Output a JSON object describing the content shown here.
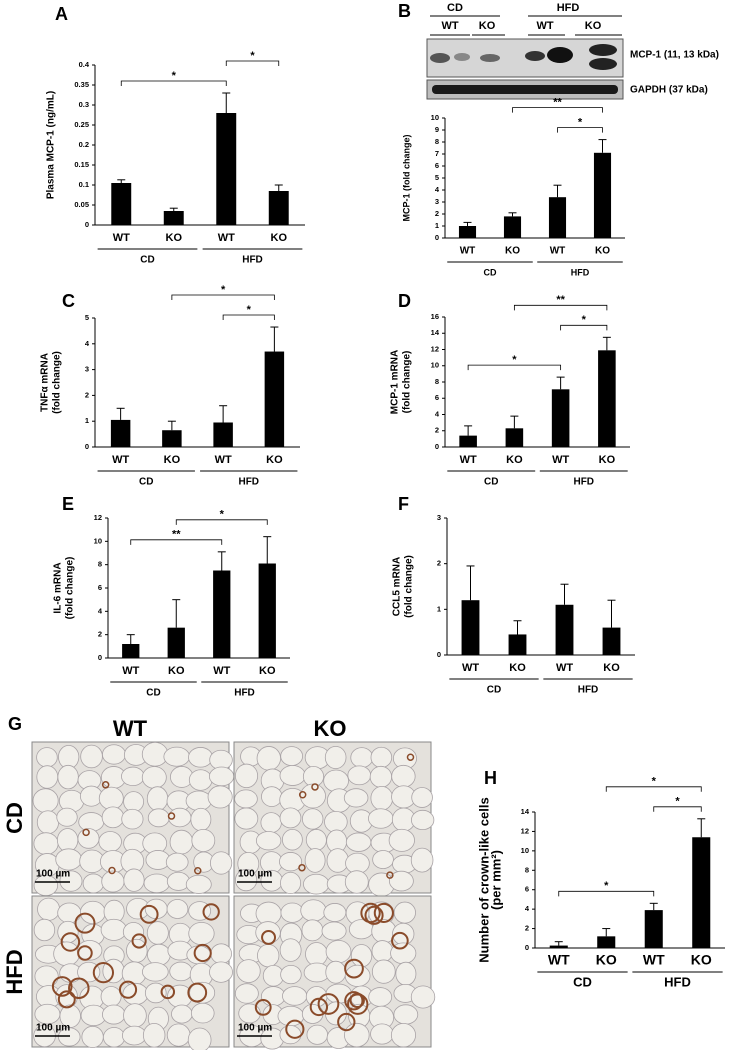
{
  "chart_data": [
    {
      "panel": "A",
      "type": "bar",
      "y_label": [
        "Plasma MCP-1 (ng/mL)"
      ],
      "categories": [
        "WT",
        "KO",
        "WT",
        "KO"
      ],
      "groups": [
        "CD",
        "HFD"
      ],
      "values": [
        0.105,
        0.035,
        0.28,
        0.085
      ],
      "errors": [
        0.008,
        0.007,
        0.05,
        0.015
      ],
      "color": "#000000",
      "ylim": [
        0,
        0.4
      ],
      "yticks": [
        0,
        0.05,
        0.1,
        0.15,
        0.2,
        0.25,
        0.3,
        0.35,
        0.4
      ],
      "significance": [
        {
          "label": "*",
          "bars": [
            0,
            2
          ]
        },
        {
          "label": "*",
          "bars": [
            2,
            3
          ]
        }
      ]
    },
    {
      "panel": "B",
      "type": "bar",
      "y_label": [
        "MCP-1 (fold change)"
      ],
      "categories": [
        "WT",
        "KO",
        "WT",
        "KO"
      ],
      "groups": [
        "CD",
        "HFD"
      ],
      "values": [
        1.0,
        1.8,
        3.4,
        7.1
      ],
      "errors": [
        0.3,
        0.3,
        1.0,
        1.1
      ],
      "color": "#000000",
      "ylim": [
        0,
        10
      ],
      "yticks": [
        0,
        1,
        2,
        3,
        4,
        5,
        6,
        7,
        8,
        9,
        10
      ],
      "significance": [
        {
          "label": "*",
          "bars": [
            2,
            3
          ]
        },
        {
          "label": "**",
          "bars": [
            1,
            3
          ]
        }
      ]
    },
    {
      "panel": "C",
      "type": "bar",
      "y_label": [
        "TNFα mRNA",
        "(fold change)"
      ],
      "categories": [
        "WT",
        "KO",
        "WT",
        "KO"
      ],
      "groups": [
        "CD",
        "HFD"
      ],
      "values": [
        1.05,
        0.65,
        0.95,
        3.7
      ],
      "errors": [
        0.45,
        0.35,
        0.65,
        0.95
      ],
      "color": "#000000",
      "ylim": [
        0,
        5
      ],
      "yticks": [
        0,
        1,
        2,
        3,
        4,
        5
      ],
      "significance": [
        {
          "label": "*",
          "bars": [
            2,
            3
          ]
        },
        {
          "label": "*",
          "bars": [
            1,
            3
          ]
        }
      ]
    },
    {
      "panel": "D",
      "type": "bar",
      "y_label": [
        "MCP-1 mRNA",
        "(fold change)"
      ],
      "categories": [
        "WT",
        "KO",
        "WT",
        "KO"
      ],
      "groups": [
        "CD",
        "HFD"
      ],
      "values": [
        1.4,
        2.3,
        7.1,
        11.9
      ],
      "errors": [
        1.2,
        1.5,
        1.5,
        1.6
      ],
      "color": "#000000",
      "ylim": [
        0,
        16
      ],
      "yticks": [
        0,
        2,
        4,
        6,
        8,
        10,
        12,
        14,
        16
      ],
      "significance": [
        {
          "label": "*",
          "bars": [
            0,
            2
          ]
        },
        {
          "label": "*",
          "bars": [
            2,
            3
          ]
        },
        {
          "label": "**",
          "bars": [
            1,
            3
          ]
        }
      ]
    },
    {
      "panel": "E",
      "type": "bar",
      "y_label": [
        "IL-6 mRNA",
        "(fold change)"
      ],
      "categories": [
        "WT",
        "KO",
        "WT",
        "KO"
      ],
      "groups": [
        "CD",
        "HFD"
      ],
      "values": [
        1.2,
        2.6,
        7.5,
        8.1
      ],
      "errors": [
        0.8,
        2.4,
        1.6,
        2.3
      ],
      "color": "#000000",
      "ylim": [
        0,
        12
      ],
      "yticks": [
        0,
        2,
        4,
        6,
        8,
        10,
        12
      ],
      "significance": [
        {
          "label": "**",
          "bars": [
            0,
            2
          ]
        },
        {
          "label": "*",
          "bars": [
            1,
            3
          ]
        }
      ]
    },
    {
      "panel": "F",
      "type": "bar",
      "y_label": [
        "CCL5 mRNA",
        "(fold change)"
      ],
      "categories": [
        "WT",
        "KO",
        "WT",
        "KO"
      ],
      "groups": [
        "CD",
        "HFD"
      ],
      "values": [
        1.2,
        0.45,
        1.1,
        0.6
      ],
      "errors": [
        0.75,
        0.3,
        0.45,
        0.6
      ],
      "color": "#000000",
      "ylim": [
        0,
        3
      ],
      "yticks": [
        0,
        1,
        2,
        3
      ],
      "significance": []
    },
    {
      "panel": "H",
      "type": "bar",
      "y_label": [
        "Number of crown-like cells",
        "(per mm²)"
      ],
      "categories": [
        "WT",
        "KO",
        "WT",
        "KO"
      ],
      "groups": [
        "CD",
        "HFD"
      ],
      "values": [
        0.25,
        1.2,
        3.9,
        11.4
      ],
      "errors": [
        0.4,
        0.8,
        0.7,
        1.9
      ],
      "color": "#000000",
      "ylim": [
        0,
        14
      ],
      "yticks": [
        0,
        2,
        4,
        6,
        8,
        10,
        12,
        14
      ],
      "significance": [
        {
          "label": "*",
          "bars": [
            0,
            2
          ]
        },
        {
          "label": "*",
          "bars": [
            2,
            3
          ]
        },
        {
          "label": "*",
          "bars": [
            1,
            3
          ]
        }
      ]
    }
  ],
  "blot": {
    "conditions": [
      "CD",
      "HFD"
    ],
    "genotypes": [
      "WT",
      "KO",
      "WT",
      "KO"
    ],
    "bands": [
      "MCP-1 (11, 13 kDa)",
      "GAPDH (37 kDa)"
    ]
  },
  "micrographs": {
    "panel": "G",
    "columns": [
      "WT",
      "KO"
    ],
    "rows": [
      "CD",
      "HFD"
    ],
    "scale_bar": "100 µm"
  }
}
